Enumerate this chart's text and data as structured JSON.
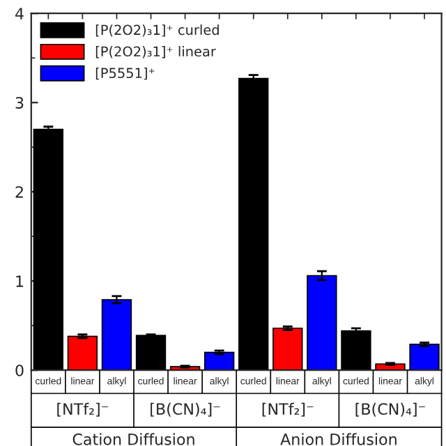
{
  "chart_data": {
    "type": "bar",
    "categories": [
      "curled",
      "linear",
      "alkyl",
      "curled",
      "linear",
      "alkyl",
      "curled",
      "linear",
      "alkyl",
      "curled",
      "linear",
      "alkyl"
    ],
    "series": [
      {
        "name": "[P(2O2)₃1]⁺ curled",
        "color": "#000000",
        "values": [
          2.7,
          null,
          null,
          0.39,
          null,
          null,
          3.27,
          null,
          null,
          0.44,
          null,
          null
        ],
        "errors": [
          0.03,
          null,
          null,
          0.01,
          null,
          null,
          0.04,
          null,
          null,
          0.03,
          null,
          null
        ]
      },
      {
        "name": "[P(2O2)₃1]⁺ linear",
        "color": "#ff0000",
        "values": [
          null,
          0.38,
          null,
          null,
          0.04,
          null,
          null,
          0.47,
          null,
          null,
          0.07,
          null
        ],
        "errors": [
          null,
          0.02,
          null,
          null,
          0.01,
          null,
          null,
          0.02,
          null,
          null,
          0.01,
          null
        ]
      },
      {
        "name": "[P5551]⁺",
        "color": "#0000ff",
        "values": [
          null,
          null,
          0.79,
          null,
          null,
          0.2,
          null,
          null,
          1.06,
          null,
          null,
          0.29
        ],
        "errors": [
          null,
          null,
          0.04,
          null,
          null,
          0.02,
          null,
          null,
          0.05,
          null,
          null,
          0.02
        ]
      }
    ],
    "ylim": [
      0,
      4
    ],
    "yticks": [
      0,
      1,
      2,
      3,
      4
    ],
    "grid": false,
    "legend": "top left",
    "annotations": [
      "[NTf₂]⁻",
      "[B(CN)₄]⁻",
      "[NTf₂]⁻",
      "[B(CN)₄]⁻",
      "Cation Diffusion",
      "Anion Diffusion"
    ]
  }
}
